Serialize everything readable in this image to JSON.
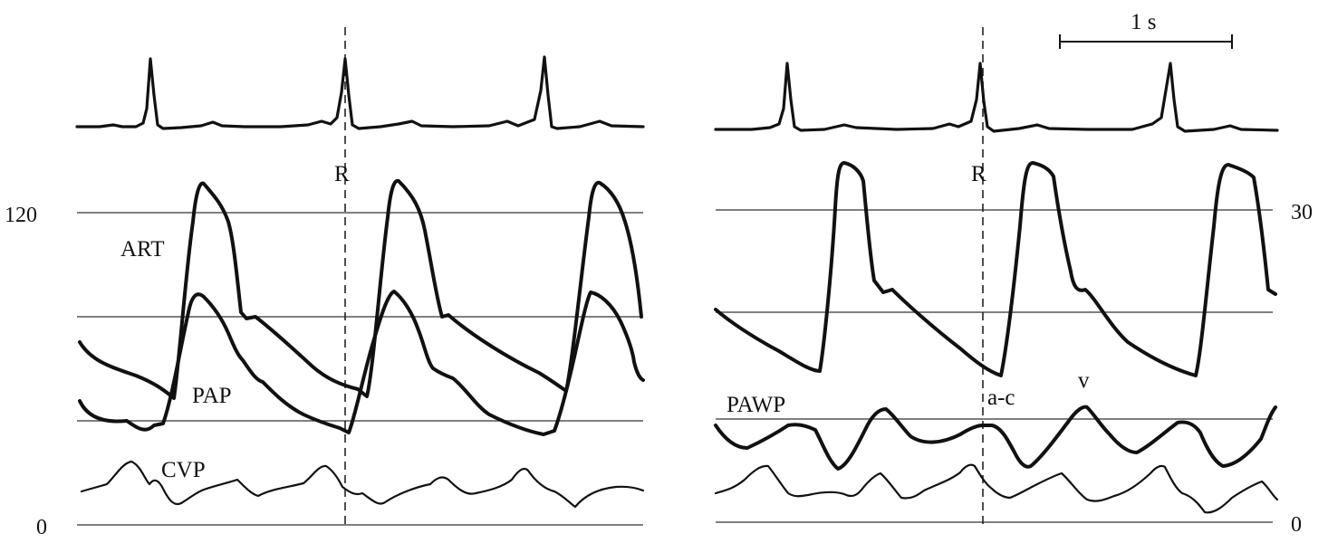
{
  "left_panel": {
    "y_axis_top_label": "120",
    "y_axis_bottom_label": "0",
    "r_marker_label": "R",
    "trace_labels": {
      "art": "ART",
      "pap": "PAP",
      "cvp": "CVP"
    }
  },
  "right_panel": {
    "y_axis_top_label": "30",
    "y_axis_bottom_label": "0",
    "r_marker_label": "R",
    "time_scale_label": "1 s",
    "trace_labels": {
      "pawp": "PAWP",
      "ac_wave": "a-c",
      "v_wave": "v"
    }
  }
}
